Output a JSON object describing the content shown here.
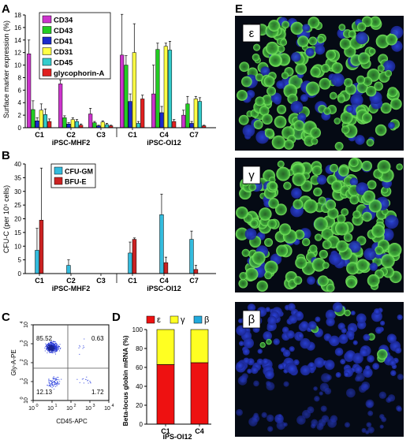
{
  "panels": {
    "a": {
      "letter": "A"
    },
    "b": {
      "letter": "B"
    },
    "c": {
      "letter": "C"
    },
    "d": {
      "letter": "D"
    },
    "e": {
      "letter": "E"
    }
  },
  "groups": [
    {
      "name": "iPSC-MHF2",
      "clones": [
        "C1",
        "C2",
        "C3"
      ]
    },
    {
      "name": "iPSC-OI12",
      "clones": [
        "C1",
        "C4",
        "C7"
      ]
    }
  ],
  "colors": {
    "CD34": "#cc33cc",
    "CD43": "#22cc22",
    "CD41": "#1a2acc",
    "CD31": "#ffff44",
    "CD45": "#33cccc",
    "glycophorin-A": "#e02020",
    "CFU-GM": "#33bbdd",
    "BFU-E": "#cc2222",
    "epsilon": "#ee1111",
    "gamma": "#ffff22",
    "beta": "#22aadd",
    "micro_bg": "#050a14",
    "micro_green": "#44c03a",
    "micro_blue": "#2b3fd0"
  },
  "chart_data": [
    {
      "id": "A",
      "type": "bar",
      "ylabel": "Surface marker expression (%)",
      "ylim": [
        0,
        18
      ],
      "yticks": [
        0,
        2,
        4,
        6,
        8,
        10,
        12,
        14,
        16,
        18
      ],
      "categories": [
        "C1",
        "C2",
        "C3",
        "C1",
        "C4",
        "C7"
      ],
      "series": [
        {
          "name": "CD34",
          "values": [
            11.8,
            7.0,
            2.2,
            11.6,
            5.4,
            2.0
          ],
          "errors": [
            2.2,
            0.6,
            0.9,
            6.5,
            4.6,
            0.8
          ]
        },
        {
          "name": "CD43",
          "values": [
            2.9,
            1.6,
            0.8,
            10.0,
            12.5,
            3.8
          ],
          "errors": [
            1.4,
            0.3,
            0.2,
            1.5,
            1.0,
            1.2
          ]
        },
        {
          "name": "CD41",
          "values": [
            1.1,
            0.6,
            0.3,
            4.2,
            2.4,
            0.7
          ],
          "errors": [
            0.5,
            0.2,
            0.1,
            1.2,
            1.0,
            0.3
          ]
        },
        {
          "name": "CD31",
          "values": [
            2.8,
            1.3,
            0.9,
            12.0,
            13.0,
            4.6
          ],
          "errors": [
            1.0,
            0.3,
            0.2,
            4.6,
            0.5,
            0.4
          ]
        },
        {
          "name": "CD45",
          "values": [
            2.1,
            1.0,
            0.5,
            0.7,
            12.4,
            4.2
          ],
          "errors": [
            0.9,
            0.3,
            0.2,
            0.3,
            1.4,
            0.6
          ]
        },
        {
          "name": "glycophorin-A",
          "values": [
            1.0,
            0.4,
            0.3,
            4.6,
            1.0,
            0.3
          ],
          "errors": [
            0.4,
            0.2,
            0.1,
            0.6,
            0.3,
            0.1
          ]
        }
      ]
    },
    {
      "id": "B",
      "type": "bar",
      "ylabel": "CFU-C (per 10⁵ cells)",
      "ylim": [
        0,
        40
      ],
      "yticks": [
        0,
        5,
        10,
        15,
        20,
        25,
        30,
        35,
        40
      ],
      "categories": [
        "C1",
        "C2",
        "C3",
        "C1",
        "C4",
        "C7"
      ],
      "series": [
        {
          "name": "CFU-GM",
          "values": [
            8.5,
            3.0,
            0.0,
            7.5,
            21.5,
            12.5
          ],
          "errors": [
            8.0,
            2.0,
            0.0,
            4.0,
            7.5,
            3.0
          ]
        },
        {
          "name": "BFU-E",
          "values": [
            19.5,
            0.0,
            0.0,
            12.5,
            4.0,
            1.5
          ],
          "errors": [
            19.0,
            0.0,
            0.0,
            0.5,
            2.0,
            1.5
          ]
        }
      ]
    },
    {
      "id": "C",
      "type": "scatter",
      "xlabel": "CD45-APC",
      "ylabel": "Gly-A-PE",
      "scale": "log",
      "xlim": [
        1,
        10000
      ],
      "ylim": [
        1,
        10000
      ],
      "ticks": [
        {
          "base": "10",
          "exp": "0"
        },
        {
          "base": "10",
          "exp": "1"
        },
        {
          "base": "10",
          "exp": "2"
        },
        {
          "base": "10",
          "exp": "3"
        },
        {
          "base": "10",
          "exp": "4"
        }
      ],
      "quadrants": {
        "top_left": "85.52",
        "top_right": "0.63",
        "bottom_left": "12.13",
        "bottom_right": "1.72"
      }
    },
    {
      "id": "D",
      "type": "bar",
      "stacked": true,
      "ylabel": "Beta-locus globin mRNA (%)",
      "xlabel": "iPS-OI12",
      "ylim": [
        0,
        100
      ],
      "yticks": [
        0,
        20,
        40,
        60,
        80,
        100
      ],
      "categories": [
        "C1",
        "C4"
      ],
      "series": [
        {
          "name": "ε",
          "values": [
            63,
            65
          ]
        },
        {
          "name": "γ",
          "values": [
            37,
            35
          ]
        },
        {
          "name": "β",
          "values": [
            0,
            0
          ]
        }
      ]
    }
  ],
  "micrographs": [
    {
      "label": "ε",
      "intensity": "high"
    },
    {
      "label": "γ",
      "intensity": "high"
    },
    {
      "label": "β",
      "intensity": "low"
    }
  ]
}
